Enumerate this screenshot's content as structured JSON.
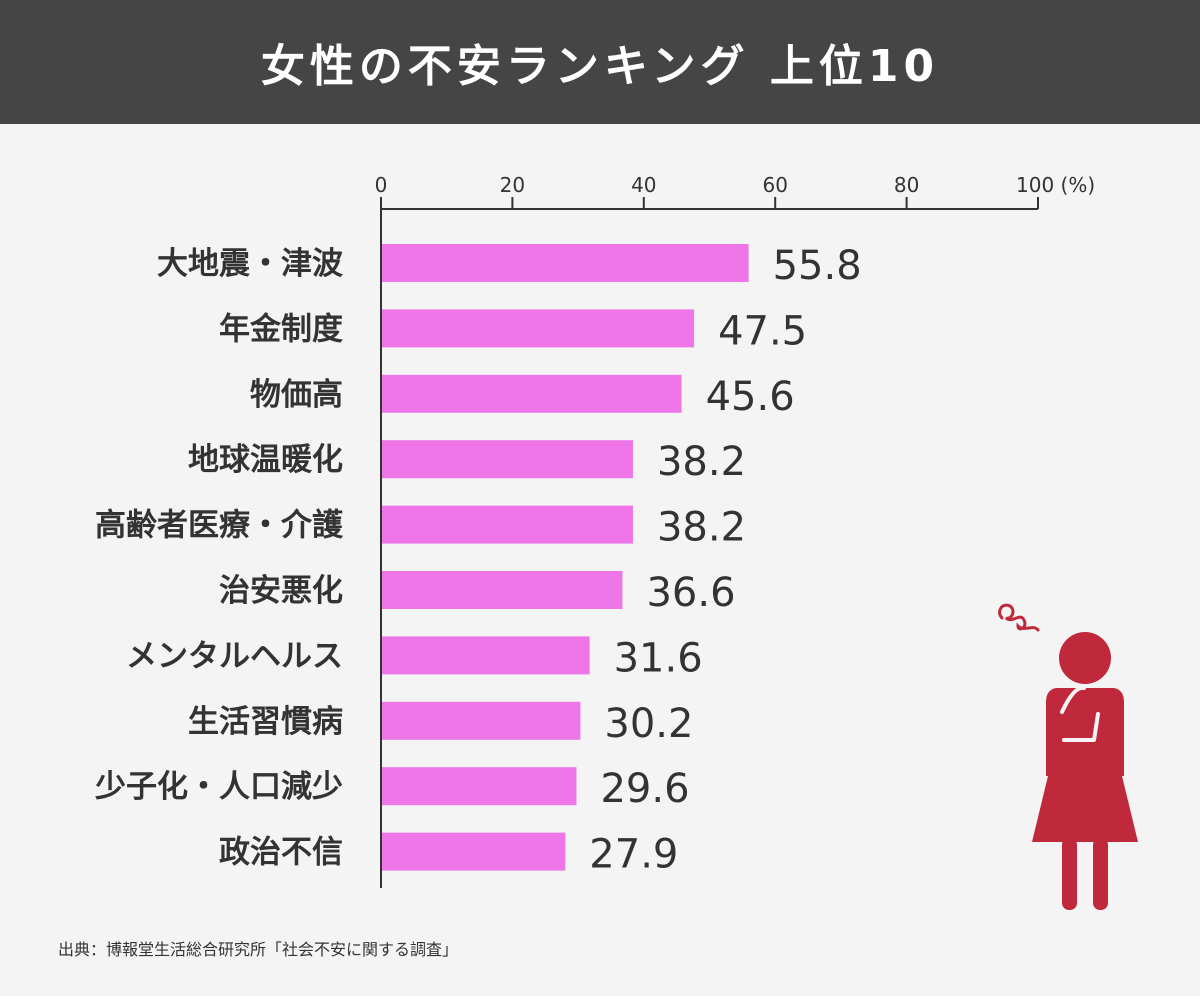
{
  "header": {
    "title": "女性の不安ランキング 上位10"
  },
  "source": "出典：博報堂生活総合研究所「社会不安に関する調査」",
  "colors": {
    "bar": "#ee76e8",
    "header_bg": "#454545",
    "figure": "#c0283c"
  },
  "chart_data": {
    "type": "bar",
    "orientation": "horizontal",
    "title": "女性の不安ランキング 上位10",
    "xlim": [
      0,
      100
    ],
    "x_ticks": [
      {
        "value": 0,
        "label": "0"
      },
      {
        "value": 20,
        "label": "20"
      },
      {
        "value": 40,
        "label": "40"
      },
      {
        "value": 60,
        "label": "60"
      },
      {
        "value": 80,
        "label": "80"
      },
      {
        "value": 100,
        "label": "100 (%)"
      }
    ],
    "categories": [
      "大地震・津波",
      "年金制度",
      "物価高",
      "地球温暖化",
      "高齢者医療・介護",
      "治安悪化",
      "メンタルヘルス",
      "生活習慣病",
      "少子化・人口減少",
      "政治不信"
    ],
    "values": [
      55.8,
      47.5,
      45.6,
      38.2,
      38.2,
      36.6,
      31.6,
      30.2,
      29.6,
      27.9
    ],
    "value_labels": [
      "55.8",
      "47.5",
      "45.6",
      "38.2",
      "38.2",
      "36.6",
      "31.6",
      "30.2",
      "29.6",
      "27.9"
    ],
    "grid": false
  },
  "illustration": {
    "icon": "worried-woman-icon"
  }
}
